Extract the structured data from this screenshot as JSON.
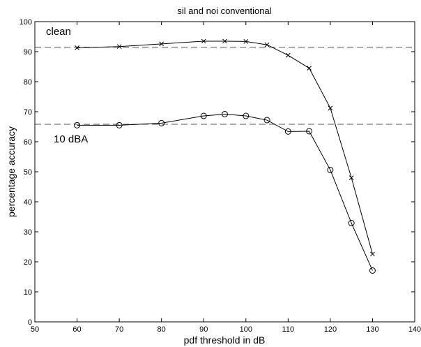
{
  "chart_data": {
    "type": "line",
    "title": "sil and noi conventional",
    "xlabel": "pdf threshold in dB",
    "ylabel": "percentage accuracy",
    "xlim": [
      50,
      140
    ],
    "ylim": [
      0,
      100
    ],
    "xticks": [
      50,
      60,
      70,
      80,
      90,
      100,
      110,
      120,
      130,
      140
    ],
    "yticks": [
      0,
      10,
      20,
      30,
      40,
      50,
      60,
      70,
      80,
      90,
      100
    ],
    "grid": false,
    "x": [
      60,
      70,
      80,
      90,
      95,
      100,
      105,
      110,
      115,
      120,
      125,
      130
    ],
    "series": [
      {
        "marker": "x",
        "values": [
          91.3,
          91.7,
          92.6,
          93.5,
          93.5,
          93.4,
          92.3,
          88.8,
          84.5,
          71.2,
          48.0,
          22.6
        ]
      },
      {
        "marker": "o",
        "values": [
          65.5,
          65.5,
          66.2,
          68.6,
          69.2,
          68.6,
          67.2,
          63.4,
          63.5,
          50.6,
          32.9,
          17.1
        ]
      }
    ],
    "reference_lines": [
      {
        "y": 91.5,
        "style": "dashed",
        "label": "clean"
      },
      {
        "y": 65.8,
        "style": "dashed",
        "label": "10 dBA"
      }
    ],
    "colors": {
      "line": "#000000",
      "reference": "#555555",
      "background": "#ffffff"
    }
  }
}
